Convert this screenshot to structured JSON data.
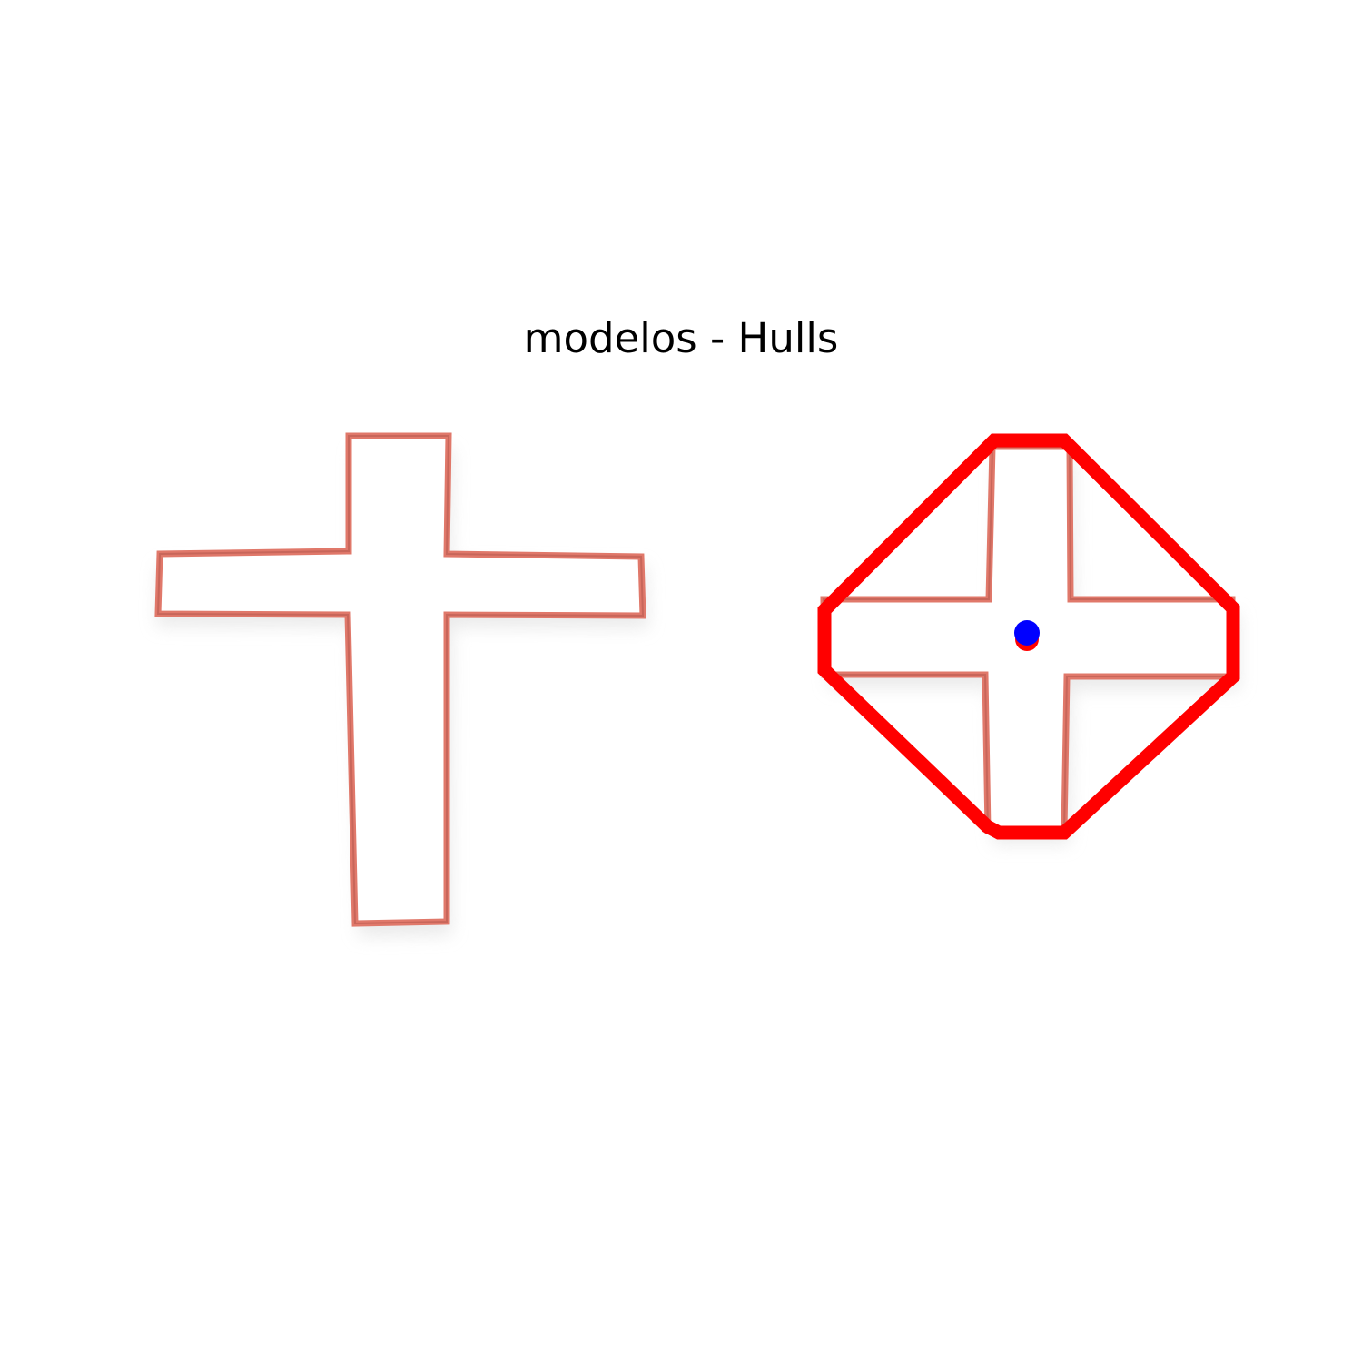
{
  "figure": {
    "title": "modelos - Hulls"
  },
  "panels": [
    {
      "name": "original-contour",
      "shape": "cross",
      "hull_shown": false,
      "centroid_shown": false
    },
    {
      "name": "convex-hull",
      "shape": "cross",
      "hull_shown": true,
      "centroid_shown": true
    }
  ],
  "colors": {
    "background": "#ffffff",
    "contour_outline": "#e0786a",
    "contour_shadow": "#e8e8e8",
    "hull": "#ff0000",
    "centroid": "#0000ff",
    "centroid_ring": "#ff0000"
  }
}
